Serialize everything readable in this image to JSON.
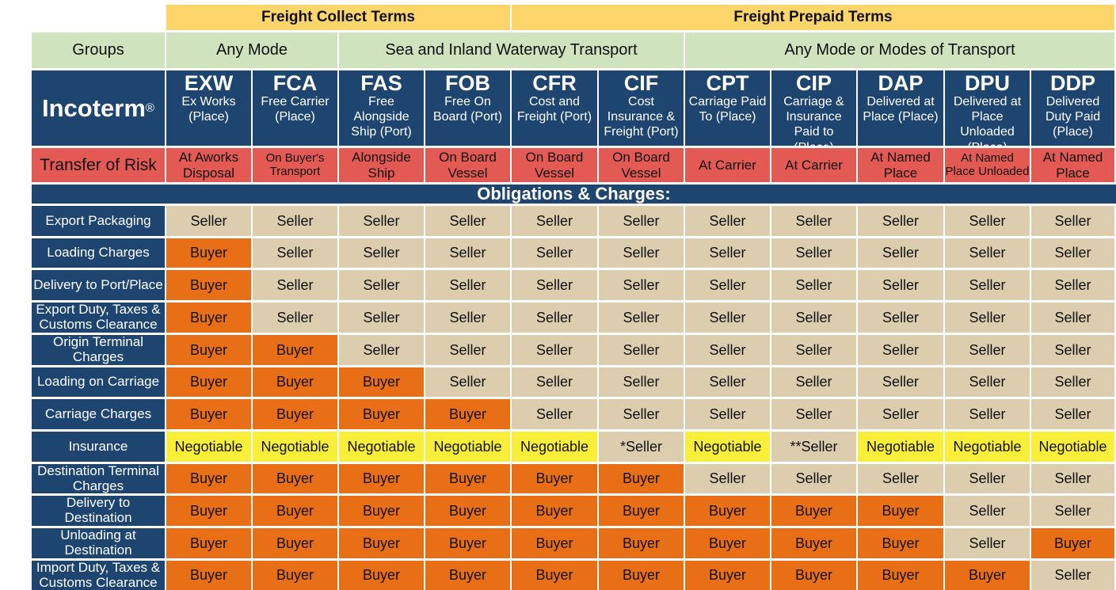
{
  "term_groups": [
    {
      "label": "Freight Collect Terms",
      "span": 4
    },
    {
      "label": "Freight Prepaid Terms",
      "span": 7
    }
  ],
  "groups_header": "Groups",
  "mode_groups": [
    {
      "label": "Any Mode",
      "span": 2
    },
    {
      "label": "Sea and Inland Waterway Transport",
      "span": 4
    },
    {
      "label": "Any Mode or Modes of Transport",
      "span": 5
    }
  ],
  "incoterm_label": "Incoterm",
  "incoterm_mark": "®",
  "terms": [
    {
      "code": "EXW",
      "desc": "Ex Works (Place)",
      "risk": "At Aworks Disposal"
    },
    {
      "code": "FCA",
      "desc": "Free Carrier (Place)",
      "risk": "On Buyer's Transport"
    },
    {
      "code": "FAS",
      "desc": "Free Alongside Ship (Port)",
      "risk": "Alongside Ship"
    },
    {
      "code": "FOB",
      "desc": "Free On Board (Port)",
      "risk": "On Board Vessel"
    },
    {
      "code": "CFR",
      "desc": "Cost and Freight (Port)",
      "risk": "On Board Vessel"
    },
    {
      "code": "CIF",
      "desc": "Cost Insurance & Freight (Port)",
      "risk": "On Board Vessel"
    },
    {
      "code": "CPT",
      "desc": "Carriage Paid To (Place)",
      "risk": "At Carrier"
    },
    {
      "code": "CIP",
      "desc": "Carriage & Insurance Paid to (Place)",
      "risk": "At Carrier"
    },
    {
      "code": "DAP",
      "desc": "Delivered at Place (Place)",
      "risk": "At Named Place"
    },
    {
      "code": "DPU",
      "desc": "Delivered at Place Unloaded (Place)",
      "risk": "At Named Place Unloaded"
    },
    {
      "code": "DDP",
      "desc": "Delivered Duty Paid (Place)",
      "risk": "At Named Place"
    }
  ],
  "transfer_of_risk_label": "Transfer of Risk",
  "section_title": "Obligations & Charges:",
  "colors": {
    "navy": "#1e4470",
    "seller": "#dccdae",
    "buyer": "#e96f17",
    "negotiable": "#f9ee3a",
    "risk": "#e35a55",
    "mode_green": "#cfe3bf",
    "term_yellow": "#fcd56b"
  },
  "obligations": [
    {
      "label": "Export Packaging",
      "values": [
        "Seller",
        "Seller",
        "Seller",
        "Seller",
        "Seller",
        "Seller",
        "Seller",
        "Seller",
        "Seller",
        "Seller",
        "Seller"
      ]
    },
    {
      "label": "Loading Charges",
      "values": [
        "Buyer",
        "Seller",
        "Seller",
        "Seller",
        "Seller",
        "Seller",
        "Seller",
        "Seller",
        "Seller",
        "Seller",
        "Seller"
      ]
    },
    {
      "label": "Delivery to Port/Place",
      "values": [
        "Buyer",
        "Seller",
        "Seller",
        "Seller",
        "Seller",
        "Seller",
        "Seller",
        "Seller",
        "Seller",
        "Seller",
        "Seller"
      ]
    },
    {
      "label": "Export Duty, Taxes & Customs Clearance",
      "values": [
        "Buyer",
        "Seller",
        "Seller",
        "Seller",
        "Seller",
        "Seller",
        "Seller",
        "Seller",
        "Seller",
        "Seller",
        "Seller"
      ]
    },
    {
      "label": "Origin Terminal Charges",
      "values": [
        "Buyer",
        "Buyer",
        "Seller",
        "Seller",
        "Seller",
        "Seller",
        "Seller",
        "Seller",
        "Seller",
        "Seller",
        "Seller"
      ]
    },
    {
      "label": "Loading on Carriage",
      "values": [
        "Buyer",
        "Buyer",
        "Buyer",
        "Seller",
        "Seller",
        "Seller",
        "Seller",
        "Seller",
        "Seller",
        "Seller",
        "Seller"
      ]
    },
    {
      "label": "Carriage Charges",
      "values": [
        "Buyer",
        "Buyer",
        "Buyer",
        "Buyer",
        "Seller",
        "Seller",
        "Seller",
        "Seller",
        "Seller",
        "Seller",
        "Seller"
      ]
    },
    {
      "label": "Insurance",
      "values": [
        "Negotiable",
        "Negotiable",
        "Negotiable",
        "Negotiable",
        "Negotiable",
        "*Seller",
        "Negotiable",
        "**Seller",
        "Negotiable",
        "Negotiable",
        "Negotiable"
      ]
    },
    {
      "label": "Destination Terminal Charges",
      "values": [
        "Buyer",
        "Buyer",
        "Buyer",
        "Buyer",
        "Buyer",
        "Buyer",
        "Seller",
        "Seller",
        "Seller",
        "Seller",
        "Seller"
      ]
    },
    {
      "label": "Delivery to Destination",
      "values": [
        "Buyer",
        "Buyer",
        "Buyer",
        "Buyer",
        "Buyer",
        "Buyer",
        "Buyer",
        "Buyer",
        "Buyer",
        "Seller",
        "Seller"
      ]
    },
    {
      "label": "Unloading at Destination",
      "values": [
        "Buyer",
        "Buyer",
        "Buyer",
        "Buyer",
        "Buyer",
        "Buyer",
        "Buyer",
        "Buyer",
        "Buyer",
        "Seller",
        "Buyer"
      ]
    },
    {
      "label": "Import Duty, Taxes & Customs Clearance",
      "values": [
        "Buyer",
        "Buyer",
        "Buyer",
        "Buyer",
        "Buyer",
        "Buyer",
        "Buyer",
        "Buyer",
        "Buyer",
        "Buyer",
        "Seller"
      ]
    }
  ]
}
